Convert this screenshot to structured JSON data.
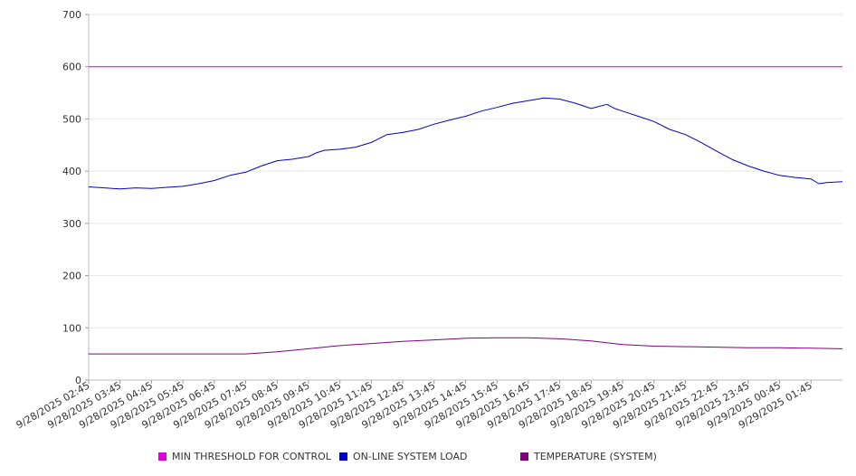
{
  "chart_data": {
    "type": "line",
    "title": "",
    "xlabel": "",
    "ylabel": "",
    "ylim": [
      0,
      700
    ],
    "yticks": [
      0,
      100,
      200,
      300,
      400,
      500,
      600,
      700
    ],
    "grid": true,
    "legend_position": "bottom",
    "x_start": "9/28/2025 02:45",
    "x_end": "9/29/2025 02:45",
    "x_tick_labels": [
      "9/28/2025 02:45",
      "9/28/2025 03:45",
      "9/28/2025 04:45",
      "9/28/2025 05:45",
      "9/28/2025 06:45",
      "9/28/2025 07:45",
      "9/28/2025 08:45",
      "9/28/2025 09:45",
      "9/28/2025 10:45",
      "9/28/2025 11:45",
      "9/28/2025 12:45",
      "9/28/2025 13:45",
      "9/28/2025 14:45",
      "9/28/2025 15:45",
      "9/28/2025 16:45",
      "9/28/2025 17:45",
      "9/28/2025 18:45",
      "9/28/2025 19:45",
      "9/28/2025 20:45",
      "9/28/2025 21:45",
      "9/28/2025 22:45",
      "9/28/2025 23:45",
      "9/29/2025 00:45",
      "9/29/2025 01:45"
    ],
    "series": [
      {
        "name": "MIN THRESHOLD FOR CONTROL",
        "color": "#dd00dd",
        "x": [
          "9/28/2025 02:45",
          "9/29/2025 02:45"
        ],
        "values": [
          600,
          600
        ]
      },
      {
        "name": "ON-LINE SYSTEM LOAD",
        "color": "#0000cc",
        "x": [
          "9/28/2025 02:45",
          "9/28/2025 03:15",
          "9/28/2025 03:45",
          "9/28/2025 04:15",
          "9/28/2025 04:45",
          "9/28/2025 05:15",
          "9/28/2025 05:45",
          "9/28/2025 06:15",
          "9/28/2025 06:45",
          "9/28/2025 07:15",
          "9/28/2025 07:45",
          "9/28/2025 08:15",
          "9/28/2025 08:45",
          "9/28/2025 09:15",
          "9/28/2025 09:45",
          "9/28/2025 10:00",
          "9/28/2025 10:15",
          "9/28/2025 10:45",
          "9/28/2025 11:15",
          "9/28/2025 11:45",
          "9/28/2025 12:15",
          "9/28/2025 12:45",
          "9/28/2025 13:15",
          "9/28/2025 13:45",
          "9/28/2025 14:15",
          "9/28/2025 14:45",
          "9/28/2025 15:15",
          "9/28/2025 15:45",
          "9/28/2025 16:15",
          "9/28/2025 16:45",
          "9/28/2025 17:15",
          "9/28/2025 17:45",
          "9/28/2025 18:15",
          "9/28/2025 18:45",
          "9/28/2025 19:15",
          "9/28/2025 19:30",
          "9/28/2025 19:45",
          "9/28/2025 20:15",
          "9/28/2025 20:45",
          "9/28/2025 21:15",
          "9/28/2025 21:45",
          "9/28/2025 22:15",
          "9/28/2025 22:45",
          "9/28/2025 23:15",
          "9/28/2025 23:45",
          "9/29/2025 00:15",
          "9/29/2025 00:45",
          "9/29/2025 01:15",
          "9/29/2025 01:45",
          "9/29/2025 02:00",
          "9/29/2025 02:15",
          "9/29/2025 02:45"
        ],
        "values": [
          370,
          368,
          366,
          368,
          367,
          369,
          371,
          376,
          382,
          392,
          398,
          410,
          420,
          423,
          428,
          435,
          440,
          442,
          446,
          455,
          470,
          474,
          480,
          490,
          498,
          505,
          515,
          522,
          530,
          535,
          540,
          538,
          530,
          520,
          528,
          520,
          515,
          505,
          495,
          480,
          470,
          455,
          438,
          422,
          410,
          400,
          392,
          388,
          385,
          376,
          378,
          380
        ]
      },
      {
        "name": "TEMPERATURE (SYSTEM)",
        "color": "#800080",
        "x": [
          "9/28/2025 02:45",
          "9/28/2025 04:45",
          "9/28/2025 06:45",
          "9/28/2025 07:45",
          "9/28/2025 08:45",
          "9/28/2025 09:45",
          "9/28/2025 10:45",
          "9/28/2025 11:45",
          "9/28/2025 12:45",
          "9/28/2025 13:45",
          "9/28/2025 14:45",
          "9/28/2025 15:45",
          "9/28/2025 16:45",
          "9/28/2025 17:45",
          "9/28/2025 18:45",
          "9/28/2025 19:45",
          "9/28/2025 20:45",
          "9/28/2025 21:45",
          "9/28/2025 22:45",
          "9/28/2025 23:45",
          "9/29/2025 00:45",
          "9/29/2025 01:45",
          "9/29/2025 02:45"
        ],
        "values": [
          50,
          50,
          50,
          50,
          54,
          60,
          66,
          70,
          74,
          77,
          80,
          81,
          81,
          79,
          75,
          68,
          65,
          64,
          63,
          62,
          62,
          61,
          60
        ]
      }
    ]
  }
}
